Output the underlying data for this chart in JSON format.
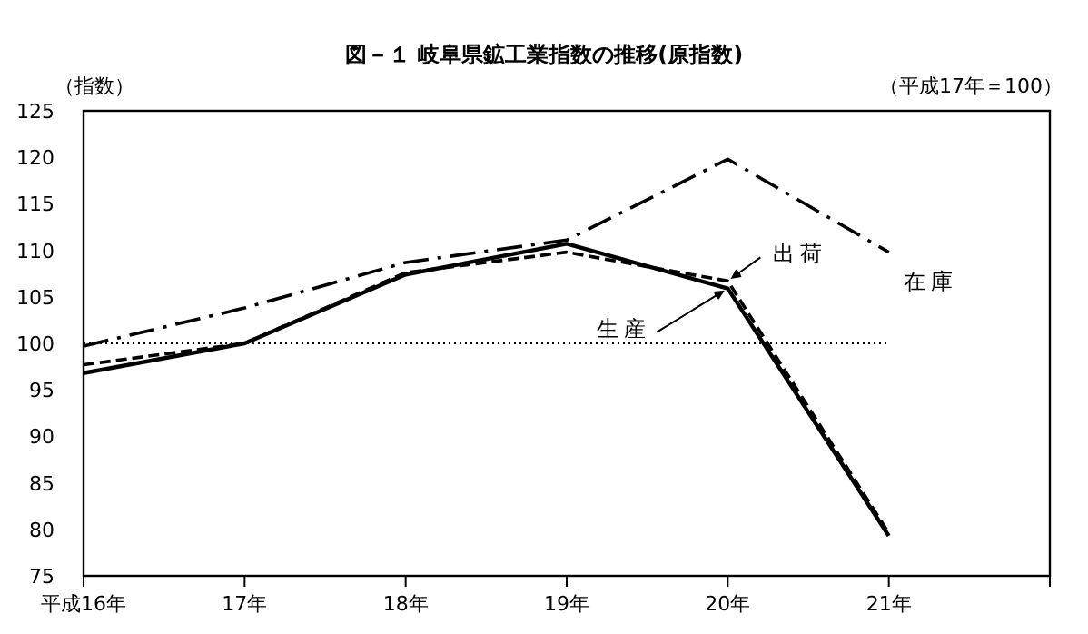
{
  "chart_data": {
    "type": "line",
    "title": "図－１ 岐阜県鉱工業指数の推移(原指数)",
    "ylabel": "（指数）",
    "annotations": [
      "（平成17年＝100）"
    ],
    "categories": [
      "平成16年",
      "17年",
      "18年",
      "19年",
      "20年",
      "21年"
    ],
    "series": [
      {
        "name": "生産",
        "color": "#000000",
        "line_style": "solid",
        "values": [
          96.8,
          100,
          107.4,
          110.7,
          105.9,
          79.3
        ]
      },
      {
        "name": "出荷",
        "color": "#000000",
        "line_style": "dashed",
        "values": [
          97.7,
          100,
          107.6,
          109.8,
          106.7,
          79.6
        ]
      },
      {
        "name": "在庫",
        "color": "#000000",
        "line_style": "dashdot",
        "values": [
          99.7,
          103.8,
          108.7,
          111.1,
          119.8,
          109.8
        ]
      }
    ],
    "ylim": [
      75,
      125
    ],
    "yticks": [
      75,
      80,
      85,
      90,
      95,
      100,
      105,
      110,
      115,
      120,
      125
    ],
    "ref_lines": [
      {
        "axis": "y",
        "value": 100,
        "line_style": "dotted",
        "color": "#000000"
      }
    ],
    "grid": false,
    "marker": "none"
  }
}
